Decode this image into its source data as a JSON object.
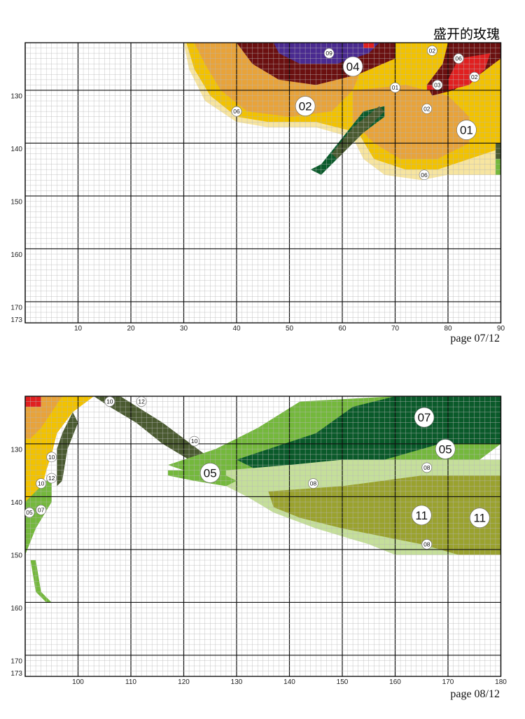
{
  "title": "盛开的玫瑰",
  "pages": [
    {
      "label": "page 07/12",
      "x_ticks": [
        "10",
        "20",
        "30",
        "40",
        "50",
        "60",
        "70",
        "80",
        "90"
      ],
      "y_ticks": [
        "130",
        "140",
        "150",
        "160",
        "170",
        "173"
      ],
      "symbols": [
        "09",
        "04",
        "02",
        "06",
        "02",
        "03",
        "01",
        "02",
        "06",
        "02",
        "01",
        "06"
      ]
    },
    {
      "label": "page 08/12",
      "x_ticks": [
        "100",
        "110",
        "120",
        "130",
        "140",
        "150",
        "160",
        "170",
        "180"
      ],
      "y_ticks": [
        "130",
        "140",
        "150",
        "160",
        "170",
        "173"
      ],
      "symbols": [
        "10",
        "12",
        "10",
        "07",
        "05",
        "10",
        "05",
        "08",
        "10",
        "12",
        "08",
        "05",
        "07",
        "11",
        "11",
        "08"
      ]
    }
  ],
  "palette": {
    "01": "#f2c200",
    "02": "#e8a33a",
    "03": "#e02020",
    "04": "#6b1010",
    "05": "#74b83c",
    "06": "#f7e5a0",
    "07": "#0a5a2a",
    "08": "#c5df9a",
    "09": "#4a2a90",
    "10": "#4a5a30",
    "11": "#9aa22e",
    "12": "#d8e020"
  }
}
